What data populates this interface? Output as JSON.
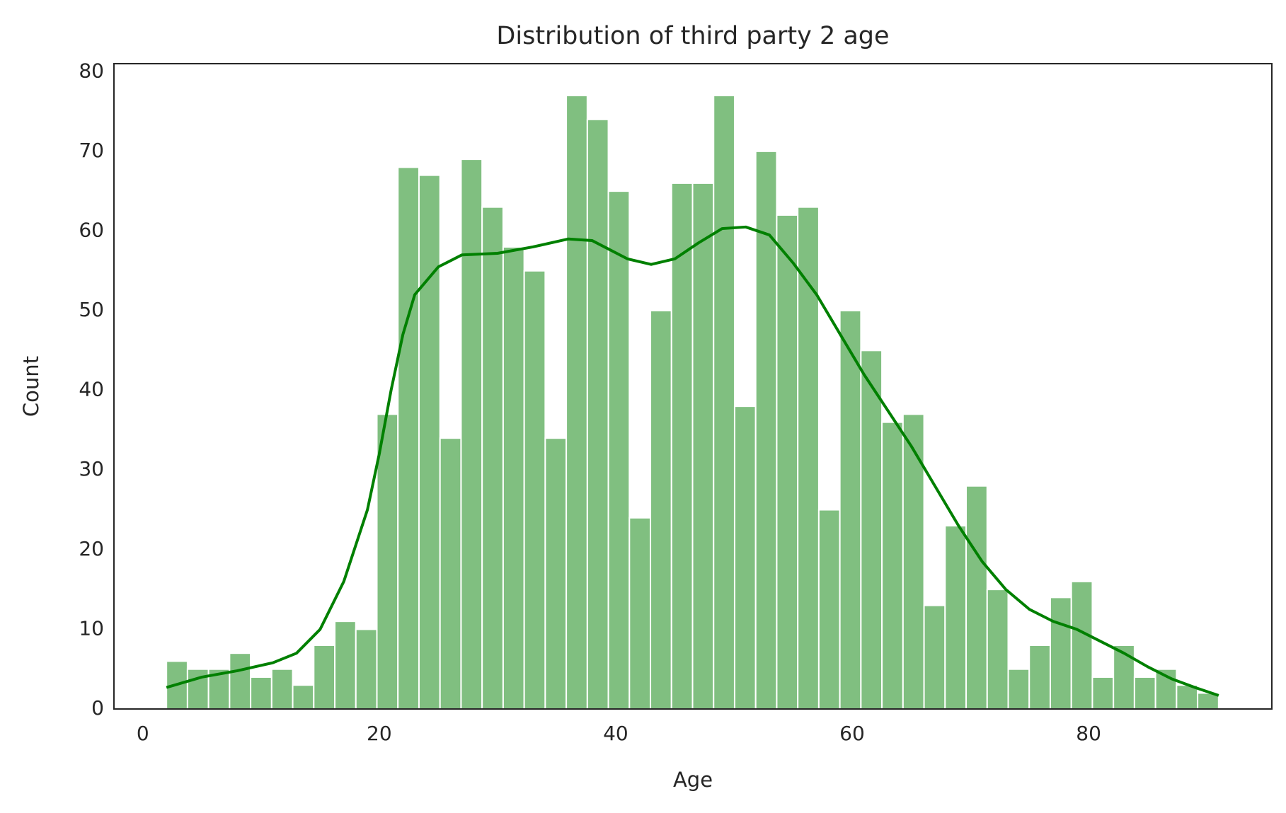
{
  "chart_data": {
    "type": "histogram",
    "title": "Distribution of third party 2 age",
    "x_label": "Age",
    "y_label": "Count",
    "bins": [
      2,
      3.78,
      5.56,
      7.34,
      9.12,
      10.9,
      12.68,
      14.46,
      16.24,
      18.02,
      19.8,
      21.58,
      23.36,
      25.14,
      26.92,
      28.7,
      30.48,
      32.26,
      34.04,
      35.82,
      37.6,
      39.38,
      41.16,
      42.94,
      44.72,
      46.5,
      48.28,
      50.06,
      51.84,
      53.62,
      55.4,
      57.18,
      58.96,
      60.74,
      62.52,
      64.3,
      66.08,
      67.86,
      69.64,
      71.42,
      73.2,
      74.98,
      76.76,
      78.54,
      80.32,
      82.1,
      83.88,
      85.66,
      87.44,
      89.22,
      91
    ],
    "counts": [
      6,
      5,
      5,
      7,
      4,
      5,
      3,
      8,
      11,
      10,
      37,
      68,
      67,
      34,
      69,
      63,
      58,
      55,
      34,
      77,
      74,
      65,
      24,
      50,
      66,
      66,
      77,
      38,
      70,
      62,
      63,
      25,
      50,
      45,
      36,
      37,
      13,
      23,
      28,
      15,
      5,
      8,
      14,
      16,
      4,
      8,
      4,
      5,
      3,
      2
    ],
    "color": "#80bf80",
    "kde": {
      "color": "#008000",
      "x": [
        2,
        5,
        8,
        11,
        13,
        15,
        17,
        19,
        20,
        21,
        22,
        23,
        25,
        27,
        30,
        33,
        36,
        38,
        41,
        43,
        45,
        47,
        49,
        51,
        53,
        55,
        57,
        59,
        61,
        63,
        65,
        67,
        69,
        71,
        73,
        75,
        77,
        79,
        81,
        83,
        85,
        87,
        89,
        91
      ],
      "values": [
        2.7,
        4,
        4.8,
        5.8,
        7,
        10,
        16,
        25,
        32,
        40,
        47,
        52,
        55.5,
        57,
        57.2,
        58,
        59,
        58.8,
        56.5,
        55.8,
        56.5,
        58.5,
        60.3,
        60.5,
        59.5,
        56,
        52,
        47,
        42,
        37.5,
        33,
        28,
        23,
        18.5,
        15,
        12.5,
        11,
        10,
        8.5,
        7,
        5.3,
        3.8,
        2.7,
        1.7
      ]
    },
    "xlim": [
      -2.44,
      95.5
    ],
    "ylim": [
      0,
      81
    ],
    "xticks": [
      0,
      20,
      40,
      60,
      80
    ],
    "yticks": [
      0,
      10,
      20,
      30,
      40,
      50,
      60,
      70,
      80
    ],
    "grid": false
  }
}
